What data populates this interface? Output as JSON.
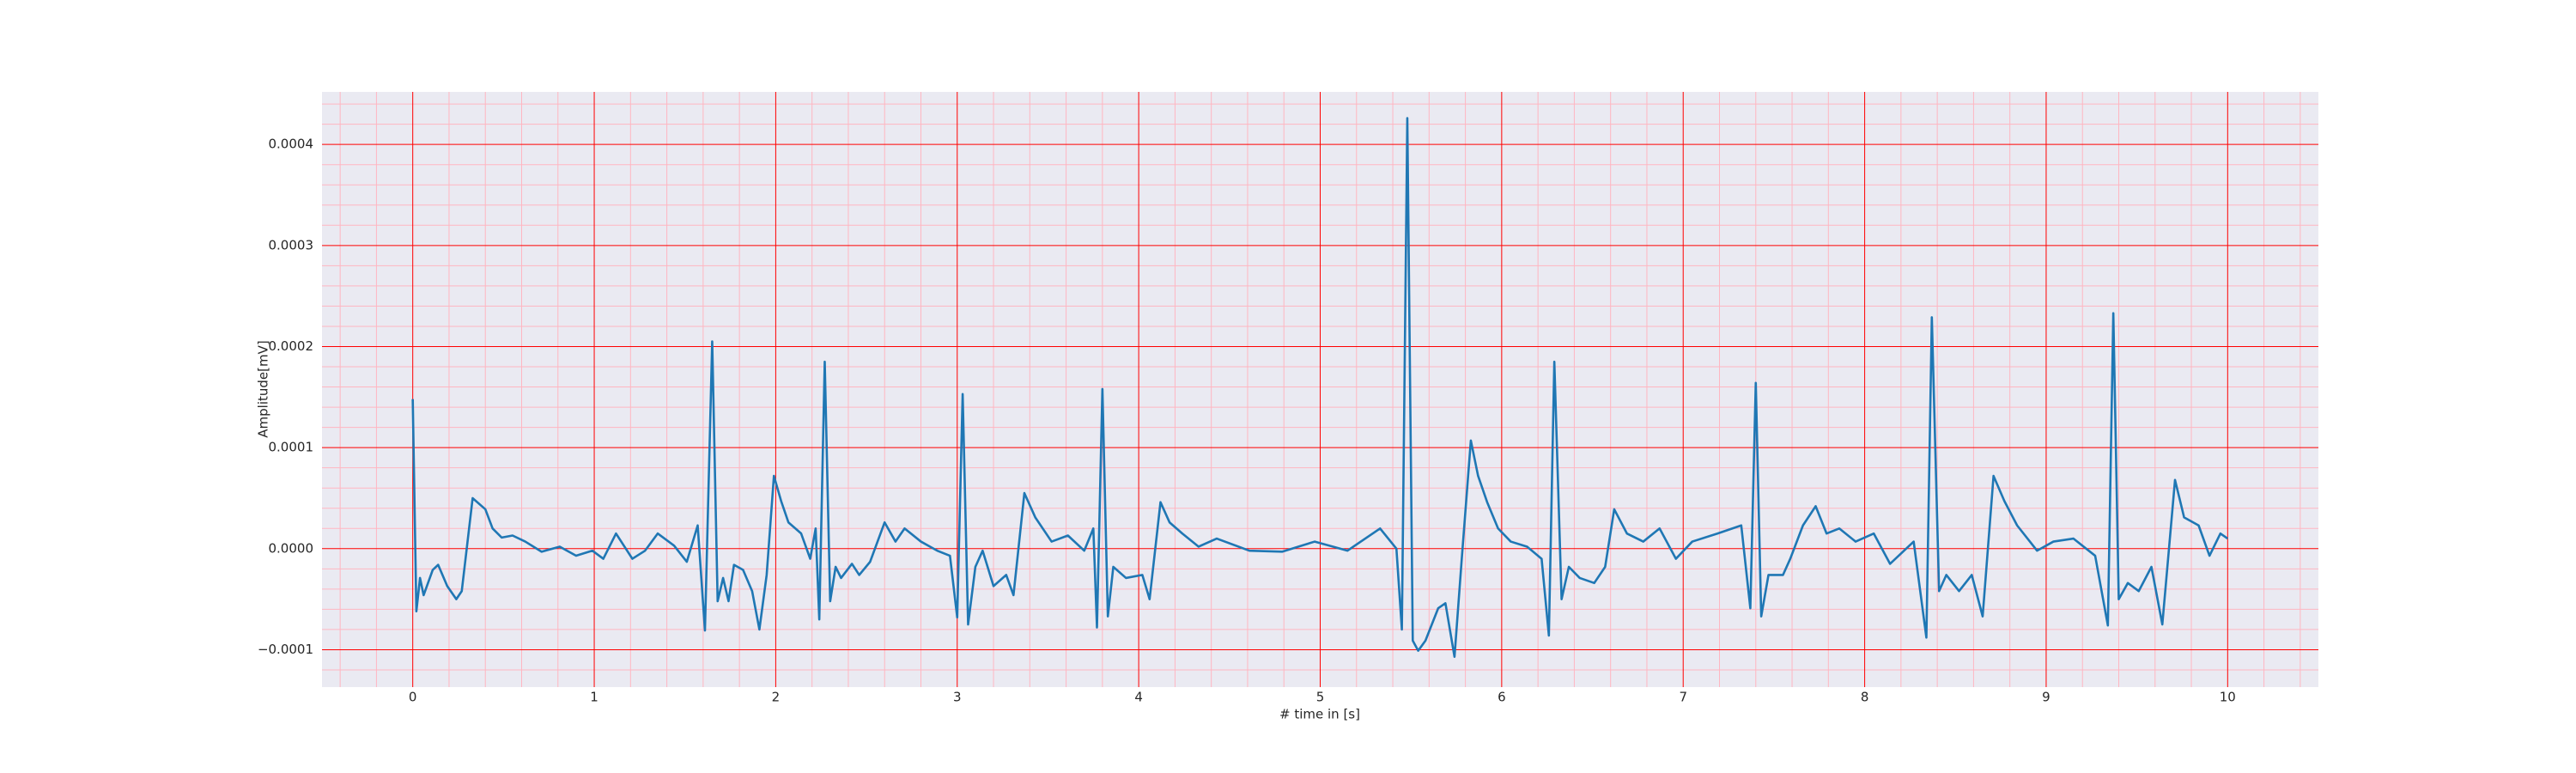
{
  "chart_data": {
    "type": "line",
    "xlabel": "# time in [s]",
    "ylabel": "Amplitude[mV]",
    "x": [
      0,
      0.02,
      0.04,
      0.06,
      0.11,
      0.14,
      0.19,
      0.24,
      0.27,
      0.33,
      0.4,
      0.44,
      0.49,
      0.55,
      0.62,
      0.71,
      0.81,
      0.9,
      0.99,
      1.05,
      1.12,
      1.21,
      1.28,
      1.35,
      1.44,
      1.51,
      1.57,
      1.61,
      1.65,
      1.68,
      1.71,
      1.74,
      1.77,
      1.82,
      1.87,
      1.91,
      1.95,
      1.99,
      2.03,
      2.07,
      2.14,
      2.19,
      2.22,
      2.24,
      2.27,
      2.3,
      2.33,
      2.36,
      2.42,
      2.46,
      2.52,
      2.6,
      2.66,
      2.71,
      2.8,
      2.89,
      2.96,
      3.0,
      3.03,
      3.06,
      3.1,
      3.14,
      3.2,
      3.27,
      3.31,
      3.37,
      3.43,
      3.52,
      3.61,
      3.7,
      3.75,
      3.77,
      3.8,
      3.83,
      3.86,
      3.93,
      4.02,
      4.06,
      4.12,
      4.17,
      4.24,
      4.33,
      4.43,
      4.61,
      4.79,
      4.97,
      5.15,
      5.33,
      5.42,
      5.45,
      5.48,
      5.51,
      5.54,
      5.58,
      5.65,
      5.69,
      5.74,
      5.78,
      5.83,
      5.87,
      5.92,
      5.98,
      6.05,
      6.14,
      6.22,
      6.26,
      6.29,
      6.33,
      6.37,
      6.43,
      6.51,
      6.57,
      6.62,
      6.69,
      6.78,
      6.87,
      6.96,
      7.05,
      7.19,
      7.32,
      7.37,
      7.4,
      7.43,
      7.47,
      7.55,
      7.59,
      7.66,
      7.73,
      7.79,
      7.86,
      7.95,
      8.05,
      8.14,
      8.27,
      8.34,
      8.37,
      8.41,
      8.45,
      8.52,
      8.59,
      8.65,
      8.71,
      8.77,
      8.84,
      8.95,
      9.04,
      9.15,
      9.27,
      9.34,
      9.37,
      9.4,
      9.45,
      9.51,
      9.58,
      9.64,
      9.71,
      9.76,
      9.84,
      9.9,
      9.96,
      10.0
    ],
    "series": [
      {
        "color": "#1f77b4",
        "values": [
          0.000148,
          -6.2e-05,
          -2.9e-05,
          -4.6e-05,
          -2.1e-05,
          -1.6e-05,
          -3.7e-05,
          -5e-05,
          -4.2e-05,
          5e-05,
          3.9e-05,
          2e-05,
          1.1e-05,
          1.3e-05,
          7e-06,
          -3e-06,
          2e-06,
          -7e-06,
          -2e-06,
          -1e-05,
          1.5e-05,
          -1e-05,
          -2e-06,
          1.5e-05,
          3e-06,
          -1.3e-05,
          2.3e-05,
          -8.1e-05,
          0.000205,
          -5.2e-05,
          -2.9e-05,
          -5.2e-05,
          -1.6e-05,
          -2.1e-05,
          -4.2e-05,
          -8e-05,
          -2.6e-05,
          7.2e-05,
          4.7e-05,
          2.6e-05,
          1.5e-05,
          -1e-05,
          2e-05,
          -7e-05,
          0.000185,
          -5.2e-05,
          -1.8e-05,
          -2.9e-05,
          -1.5e-05,
          -2.6e-05,
          -1.3e-05,
          2.6e-05,
          7e-06,
          2e-05,
          7e-06,
          -2e-06,
          -7e-06,
          -6.8e-05,
          0.000153,
          -7.5e-05,
          -1.8e-05,
          -2e-06,
          -3.7e-05,
          -2.6e-05,
          -4.6e-05,
          5.5e-05,
          3.1e-05,
          7e-06,
          1.3e-05,
          -2e-06,
          2e-05,
          -7.8e-05,
          0.000158,
          -6.7e-05,
          -1.8e-05,
          -2.9e-05,
          -2.6e-05,
          -5e-05,
          4.6e-05,
          2.6e-05,
          1.5e-05,
          2e-06,
          1e-05,
          -2e-06,
          -3e-06,
          7e-06,
          -2e-06,
          2e-05,
          0,
          -8e-05,
          0.000426,
          -9.1e-05,
          -0.000101,
          -9.1e-05,
          -5.9e-05,
          -5.4e-05,
          -0.000107,
          -1e-05,
          0.000107,
          7.2e-05,
          4.6e-05,
          2e-05,
          7e-06,
          2e-06,
          -1e-05,
          -8.6e-05,
          0.000185,
          -5e-05,
          -1.8e-05,
          -2.9e-05,
          -3.4e-05,
          -1.8e-05,
          3.9e-05,
          1.5e-05,
          7e-06,
          2e-05,
          -1e-05,
          7e-06,
          1.5e-05,
          2.3e-05,
          -5.9e-05,
          0.000164,
          -6.7e-05,
          -2.6e-05,
          -2.6e-05,
          -1e-05,
          2.3e-05,
          4.2e-05,
          1.5e-05,
          2e-05,
          7e-06,
          1.5e-05,
          -1.5e-05,
          7e-06,
          -8.8e-05,
          0.000229,
          -4.2e-05,
          -2.6e-05,
          -4.2e-05,
          -2.6e-05,
          -6.7e-05,
          7.2e-05,
          4.7e-05,
          2.3e-05,
          -2e-06,
          7e-06,
          1e-05,
          -7e-06,
          -7.6e-05,
          0.000233,
          -5e-05,
          -3.4e-05,
          -4.2e-05,
          -1.8e-05,
          -7.5e-05,
          6.8e-05,
          3.1e-05,
          2.3e-05,
          -7e-06,
          1.5e-05,
          1e-05
        ]
      }
    ],
    "xlim": [
      -0.5,
      10.5
    ],
    "xticks": [
      0,
      1,
      2,
      3,
      4,
      5,
      6,
      7,
      8,
      9,
      10
    ],
    "ylim": [
      -0.000137,
      0.000452
    ],
    "yticks": [
      {
        "value": -0.0001,
        "label": "−0.0001"
      },
      {
        "value": 0,
        "label": "0.0000"
      },
      0.0001,
      0.0002,
      0.0003,
      0.0004
    ],
    "grid": true,
    "minor_grid": true,
    "grid_color": "#ff0000",
    "minor_grid_color": "#ffb6c1",
    "background": "#eaeaf2"
  }
}
